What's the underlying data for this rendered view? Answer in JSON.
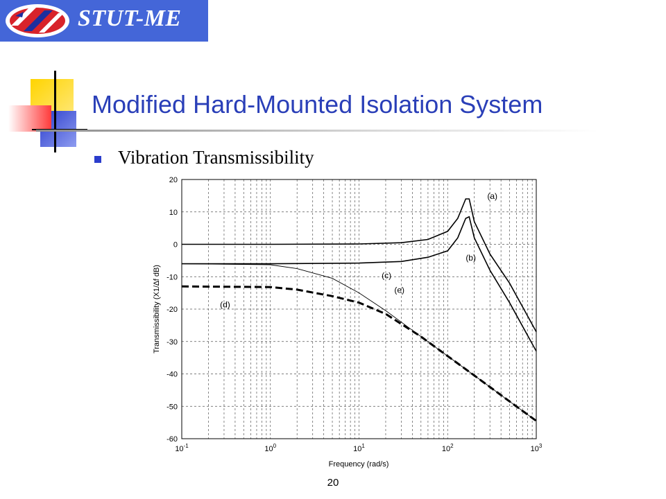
{
  "logo": {
    "text": "STUT-ME"
  },
  "slide": {
    "title": "Modified Hard-Mounted Isolation System",
    "bullet": "Vibration  Transmissibility",
    "page_number": "20"
  },
  "colors": {
    "logo_bg": "#4466d8",
    "title": "#2a3fb8",
    "bullet": "#2b3dcc"
  },
  "chart_data": {
    "type": "line",
    "title": "",
    "xlabel": "Frequency (rad/s)",
    "ylabel": "Transmissibility (X1/∆f dB)",
    "xscale": "log",
    "xlim": [
      0.1,
      1000
    ],
    "ylim": [
      -60,
      20
    ],
    "grid": true,
    "x_ticks": [
      0.1,
      1,
      10,
      100,
      1000
    ],
    "y_ticks": [
      20,
      10,
      0,
      -10,
      -20,
      -30,
      -40,
      -50,
      -60
    ],
    "y_tick_labels": [
      "20",
      "10",
      "0",
      "-10",
      "-20",
      "-30",
      "-40",
      "-50",
      "-60"
    ],
    "series": [
      {
        "name": "(a)",
        "style": "solid",
        "x": [
          0.1,
          1,
          10,
          30,
          60,
          100,
          130,
          160,
          175,
          200,
          300,
          500,
          1000
        ],
        "y": [
          0,
          0,
          0.1,
          0.5,
          1.5,
          4,
          8,
          14,
          14,
          7,
          -3,
          -12,
          -27
        ]
      },
      {
        "name": "(b)",
        "style": "solid",
        "x": [
          0.1,
          1,
          10,
          30,
          60,
          100,
          130,
          160,
          175,
          200,
          300,
          500,
          1000
        ],
        "y": [
          -6,
          -6,
          -5.8,
          -5.3,
          -4,
          -2,
          2,
          8,
          8.5,
          2,
          -8,
          -18,
          -33
        ]
      },
      {
        "name": "(c)",
        "style": "thin",
        "x": [
          0.1,
          1,
          2,
          5,
          10,
          20,
          50,
          100,
          200,
          500,
          1000
        ],
        "y": [
          -6,
          -6.3,
          -7.5,
          -10.5,
          -15,
          -20.5,
          -28.5,
          -34.5,
          -40.5,
          -48.5,
          -54.5
        ]
      },
      {
        "name": "(d)",
        "style": "dashed",
        "x": [
          0.1,
          1,
          2,
          5,
          10,
          20,
          50,
          100,
          200,
          500,
          1000
        ],
        "y": [
          -13,
          -13.2,
          -14,
          -16,
          -18,
          -21.5,
          -28.5,
          -34.5,
          -40.5,
          -48.5,
          -54.5
        ]
      }
    ],
    "annotations": [
      {
        "label": "(a)",
        "x": 280,
        "y": 14
      },
      {
        "label": "(b)",
        "x": 160,
        "y": -5
      },
      {
        "label": "(c)",
        "x": 18,
        "y": -10.5
      },
      {
        "label": "(e)",
        "x": 25,
        "y": -15
      },
      {
        "label": "(d)",
        "x": 0.27,
        "y": -19.5
      }
    ]
  }
}
